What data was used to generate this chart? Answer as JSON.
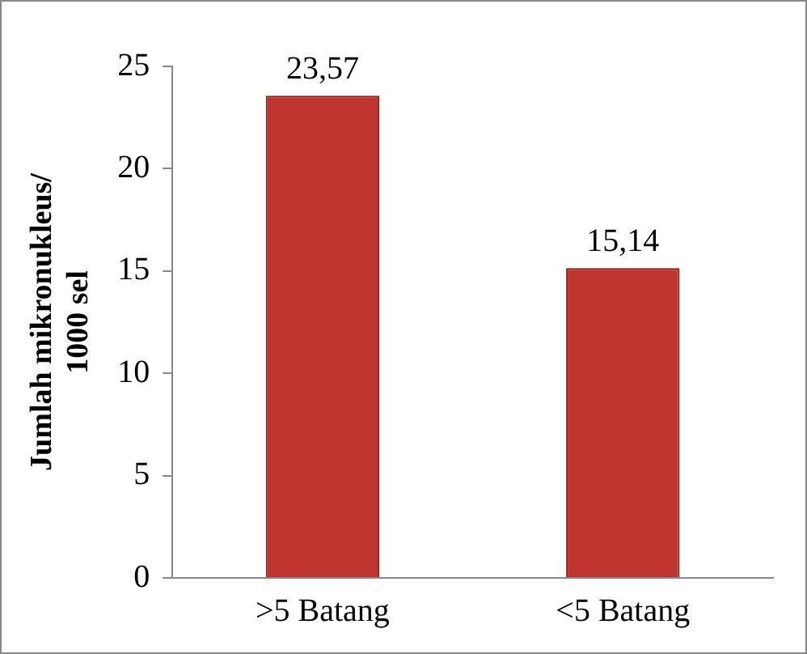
{
  "chart_data": {
    "type": "bar",
    "ylabel": "Jumlah mikronukleus/ 1000 sel",
    "categories": [
      ">5 Batang",
      "<5 Batang"
    ],
    "values": [
      23.57,
      15.14
    ],
    "value_labels": [
      "23,57",
      "15,14"
    ],
    "color": "#c0352f",
    "ylim": [
      0,
      25
    ],
    "yticks": [
      0,
      5,
      10,
      15,
      20,
      25
    ],
    "grid": false,
    "legend": false
  }
}
